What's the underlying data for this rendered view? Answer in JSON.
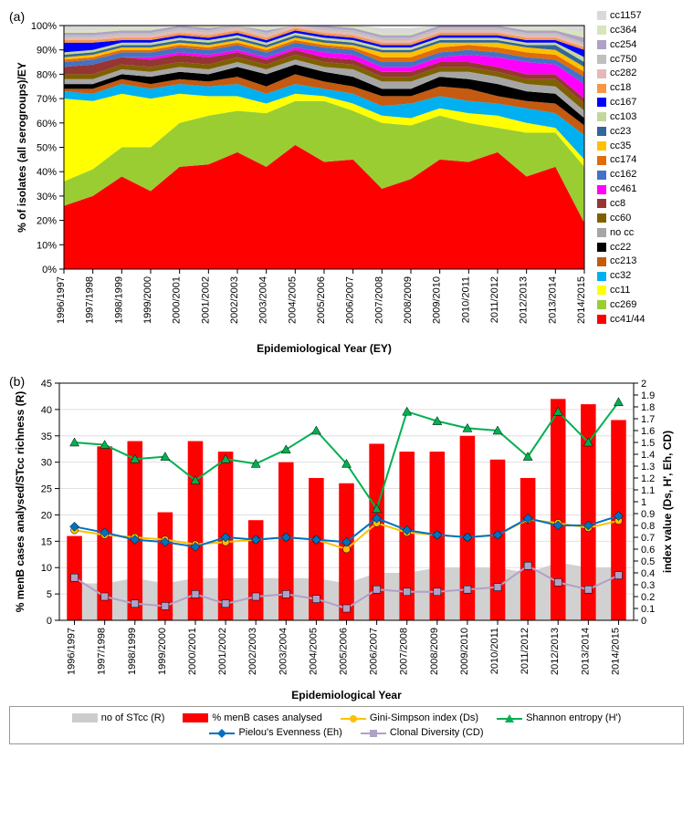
{
  "panelA": {
    "label": "(a)",
    "type": "stacked-area",
    "xlabel": "Epidemiological Year (EY)",
    "ylabel": "% of isolates (all serogroups)/EY",
    "ylim": [
      0,
      100
    ],
    "ytick_step": 10,
    "categories": [
      "1996/1997",
      "1997/1998",
      "1998/1999",
      "1999/2000",
      "2000/2001",
      "2001/2002",
      "2002/2003",
      "2003/2004",
      "2004/2005",
      "2005/2006",
      "2006/2007",
      "2007/2008",
      "2008/2009",
      "2009/2010",
      "2010/2011",
      "2011/2012",
      "2012/2013",
      "2013/2014",
      "2014/2015"
    ],
    "series": [
      {
        "name": "cc41/44",
        "color": "#ff0000",
        "values": [
          26,
          30,
          38,
          32,
          42,
          43,
          48,
          42,
          51,
          44,
          45,
          33,
          37,
          45,
          44,
          48,
          38,
          42,
          19
        ]
      },
      {
        "name": "cc269",
        "color": "#9acd32",
        "values": [
          10,
          11,
          12,
          18,
          18,
          20,
          17,
          22,
          18,
          25,
          20,
          27,
          22,
          18,
          16,
          10,
          18,
          14,
          23
        ]
      },
      {
        "name": "cc11",
        "color": "#ffff00",
        "values": [
          34,
          28,
          22,
          20,
          12,
          8,
          6,
          4,
          3,
          2,
          3,
          3,
          3,
          3,
          4,
          5,
          4,
          2,
          3
        ]
      },
      {
        "name": "cc32",
        "color": "#00b0f0",
        "values": [
          3,
          3,
          4,
          4,
          4,
          4,
          5,
          4,
          4,
          3,
          4,
          4,
          6,
          5,
          5,
          5,
          6,
          6,
          10
        ]
      },
      {
        "name": "cc213",
        "color": "#c55a11",
        "values": [
          1,
          2,
          2,
          2,
          2,
          2,
          3,
          3,
          4,
          3,
          3,
          4,
          3,
          4,
          5,
          3,
          3,
          4,
          4
        ]
      },
      {
        "name": "cc22",
        "color": "#000000",
        "values": [
          2,
          2,
          2,
          3,
          3,
          3,
          4,
          5,
          4,
          4,
          4,
          3,
          3,
          4,
          4,
          5,
          4,
          4,
          3
        ]
      },
      {
        "name": "no cc",
        "color": "#a6a6a6",
        "values": [
          2,
          2,
          2,
          2,
          2,
          2,
          2,
          2,
          2,
          2,
          3,
          3,
          3,
          2,
          3,
          3,
          3,
          3,
          3
        ]
      },
      {
        "name": "cc60",
        "color": "#7f6000",
        "values": [
          2,
          2,
          2,
          2,
          2,
          2,
          2,
          2,
          2,
          2,
          2,
          2,
          2,
          2,
          2,
          2,
          2,
          3,
          3
        ]
      },
      {
        "name": "cc8",
        "color": "#963634",
        "values": [
          3,
          4,
          3,
          3,
          3,
          3,
          2,
          2,
          2,
          2,
          2,
          2,
          2,
          2,
          2,
          2,
          2,
          2,
          2
        ]
      },
      {
        "name": "cc461",
        "color": "#ff00ff",
        "values": [
          0,
          0,
          0,
          1,
          1,
          1,
          1,
          1,
          1,
          2,
          2,
          2,
          2,
          2,
          3,
          4,
          5,
          4,
          6
        ]
      },
      {
        "name": "cc162",
        "color": "#4472c4",
        "values": [
          2,
          2,
          2,
          2,
          2,
          2,
          2,
          2,
          2,
          2,
          2,
          2,
          2,
          2,
          2,
          2,
          2,
          2,
          3
        ]
      },
      {
        "name": "cc174",
        "color": "#e26b0a",
        "values": [
          1,
          1,
          1,
          1,
          1,
          1,
          1,
          1,
          1,
          1,
          1,
          2,
          2,
          2,
          2,
          2,
          2,
          2,
          2
        ]
      },
      {
        "name": "cc35",
        "color": "#ffc000",
        "values": [
          1,
          1,
          1,
          1,
          1,
          1,
          1,
          1,
          1,
          1,
          1,
          2,
          2,
          2,
          1,
          2,
          2,
          2,
          2
        ]
      },
      {
        "name": "cc23",
        "color": "#336699",
        "values": [
          1,
          1,
          1,
          1,
          1,
          1,
          1,
          1,
          1,
          1,
          1,
          1,
          1,
          1,
          1,
          1,
          1,
          2,
          2
        ]
      },
      {
        "name": "cc103",
        "color": "#c4d79b",
        "values": [
          1,
          1,
          1,
          1,
          1,
          1,
          1,
          1,
          1,
          1,
          1,
          1,
          1,
          1,
          1,
          1,
          1,
          1,
          2
        ]
      },
      {
        "name": "cc167",
        "color": "#0000ff",
        "values": [
          4,
          3,
          1,
          1,
          1,
          1,
          1,
          1,
          1,
          1,
          1,
          1,
          1,
          1,
          1,
          1,
          1,
          1,
          3
        ]
      },
      {
        "name": "cc18",
        "color": "#f79646",
        "values": [
          1,
          1,
          1,
          1,
          1,
          1,
          1,
          1,
          1,
          1,
          1,
          1,
          1,
          1,
          1,
          1,
          1,
          1,
          1
        ]
      },
      {
        "name": "cc282",
        "color": "#e6b8b7",
        "values": [
          1,
          1,
          1,
          1,
          1,
          1,
          1,
          1,
          1,
          1,
          1,
          1,
          1,
          1,
          1,
          1,
          1,
          1,
          1
        ]
      },
      {
        "name": "cc750",
        "color": "#bfbfbf",
        "values": [
          1,
          1,
          1,
          1,
          1,
          1,
          1,
          1,
          1,
          1,
          1,
          1,
          1,
          1,
          1,
          1,
          1,
          1,
          1
        ]
      },
      {
        "name": "cc254",
        "color": "#b1a0c7",
        "values": [
          1,
          1,
          1,
          1,
          1,
          1,
          1,
          1,
          1,
          1,
          1,
          1,
          1,
          1,
          1,
          1,
          1,
          1,
          2
        ]
      },
      {
        "name": "cc364",
        "color": "#d8e4bc",
        "values": [
          1,
          1,
          1,
          1,
          1,
          1,
          1,
          1,
          1,
          1,
          1,
          1,
          1,
          1,
          1,
          1,
          1,
          1,
          2
        ]
      },
      {
        "name": "cc1157",
        "color": "#d9d9d9",
        "values": [
          2,
          2,
          1,
          1,
          1,
          1,
          1,
          1,
          1,
          1,
          1,
          2,
          2,
          1,
          1,
          1,
          1,
          2,
          3
        ]
      }
    ],
    "background_color": "#ffffff",
    "axis_color": "#000000",
    "tick_fontsize": 11,
    "label_fontsize": 12
  },
  "panelB": {
    "label": "(b)",
    "type": "combo-bar-line-area",
    "xlabel": "Epidemiological Year",
    "ylabel_left": "% menB cases analysed/STcc richness (R)",
    "ylabel_right": "index value (Ds, H', Eh, CD)",
    "categories": [
      "1996/1997",
      "1997/1998",
      "1998/1999",
      "1999/2000",
      "2000/2001",
      "2001/2002",
      "2002/2003",
      "2003/2004",
      "2004/2005",
      "2005/2006",
      "2006/2007",
      "2007/2008",
      "2008/2009",
      "2009/2010",
      "2010/2011",
      "2011/2012",
      "2012/2013",
      "2013/2014",
      "2014/2015"
    ],
    "ylim_left": [
      0,
      45
    ],
    "ytick_step_left": 5,
    "ylim_right": [
      0,
      2
    ],
    "ytick_step_right": 0.2,
    "series": {
      "stcc_area": {
        "name": "no of STcc (R)",
        "color": "#cccccc",
        "axis": "left",
        "type": "area",
        "values": [
          7,
          7,
          8,
          7,
          8,
          8,
          8,
          8,
          8,
          7,
          9,
          9,
          10,
          10,
          10,
          9,
          11,
          10,
          10
        ]
      },
      "menB_bar": {
        "name": "% menB cases analysed",
        "color": "#ff0000",
        "axis": "left",
        "type": "bar",
        "bar_width": 0.5,
        "values": [
          16,
          33,
          34,
          20.5,
          34,
          32,
          19,
          30,
          27,
          26,
          33.5,
          32,
          32,
          35,
          30.5,
          27,
          42,
          41,
          38
        ]
      },
      "gini": {
        "name": "Gini-Simpson index (Ds)",
        "color": "#ffc000",
        "axis": "right",
        "type": "line",
        "marker": "circle",
        "values": [
          0.76,
          0.72,
          0.7,
          0.68,
          0.64,
          0.66,
          0.68,
          0.7,
          0.68,
          0.6,
          0.82,
          0.74,
          0.72,
          0.7,
          0.72,
          0.85,
          0.82,
          0.78,
          0.84
        ]
      },
      "shannon": {
        "name": "Shannon entropy (H')",
        "color": "#00b050",
        "axis": "right",
        "type": "line",
        "marker": "triangle",
        "values": [
          1.5,
          1.48,
          1.36,
          1.38,
          1.18,
          1.36,
          1.32,
          1.44,
          1.6,
          1.32,
          0.94,
          1.76,
          1.68,
          1.62,
          1.6,
          1.38,
          1.76,
          1.5,
          1.84
        ]
      },
      "pielou": {
        "name": "Pielou's Evenness (Eh)",
        "color": "#0070c0",
        "axis": "right",
        "type": "line",
        "marker": "diamond",
        "values": [
          0.79,
          0.74,
          0.68,
          0.66,
          0.62,
          0.7,
          0.68,
          0.7,
          0.68,
          0.66,
          0.86,
          0.76,
          0.72,
          0.7,
          0.72,
          0.86,
          0.8,
          0.8,
          0.88
        ]
      },
      "clonal": {
        "name": "Clonal Diversity (CD)",
        "color": "#b1a0c7",
        "axis": "right",
        "type": "line",
        "marker": "square",
        "values": [
          0.36,
          0.2,
          0.14,
          0.12,
          0.22,
          0.14,
          0.2,
          0.22,
          0.18,
          0.1,
          0.26,
          0.24,
          0.24,
          0.26,
          0.28,
          0.46,
          0.32,
          0.26,
          0.38
        ]
      }
    },
    "background_color": "#ffffff",
    "axis_color": "#000000",
    "grid_color": "#e0e0e0"
  }
}
